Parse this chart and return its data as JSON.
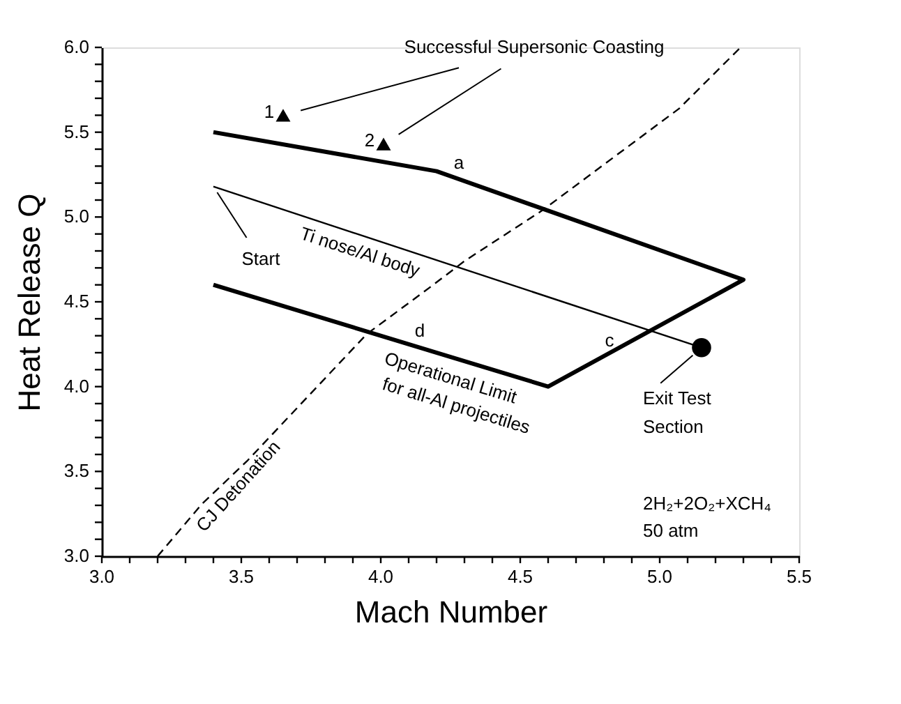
{
  "chart_data": {
    "type": "line",
    "xlabel": "Mach Number",
    "ylabel": "Heat Release Q",
    "xlim": [
      3.0,
      5.5
    ],
    "ylim": [
      3.0,
      6.0
    ],
    "xticks": [
      {
        "value": 3.0,
        "label": "3.0"
      },
      {
        "value": 3.1,
        "label": null
      },
      {
        "value": 3.2,
        "label": null
      },
      {
        "value": 3.3,
        "label": null
      },
      {
        "value": 3.4,
        "label": null
      },
      3.5,
      {
        "value": 3.6,
        "label": null
      },
      {
        "value": 3.7,
        "label": null
      },
      {
        "value": 3.8,
        "label": null
      },
      {
        "value": 3.9,
        "label": null
      },
      {
        "value": 4.0,
        "label": "4.0"
      },
      {
        "value": 4.1,
        "label": null
      },
      {
        "value": 4.2,
        "label": null
      },
      {
        "value": 4.3,
        "label": null
      },
      {
        "value": 4.4,
        "label": null
      },
      4.5,
      {
        "value": 4.6,
        "label": null
      },
      {
        "value": 4.7,
        "label": null
      },
      {
        "value": 4.8,
        "label": null
      },
      {
        "value": 4.9,
        "label": null
      },
      {
        "value": 5.0,
        "label": "5.0"
      },
      {
        "value": 5.1,
        "label": null
      },
      {
        "value": 5.2,
        "label": null
      },
      {
        "value": 5.3,
        "label": null
      },
      {
        "value": 5.4,
        "label": null
      },
      5.5
    ],
    "yticks": [
      {
        "value": 3.0,
        "label": "3.0"
      },
      {
        "value": 3.1,
        "label": null
      },
      {
        "value": 3.2,
        "label": null
      },
      {
        "value": 3.3,
        "label": null
      },
      {
        "value": 3.4,
        "label": null
      },
      3.5,
      {
        "value": 3.6,
        "label": null
      },
      {
        "value": 3.7,
        "label": null
      },
      {
        "value": 3.8,
        "label": null
      },
      {
        "value": 3.9,
        "label": null
      },
      {
        "value": 4.0,
        "label": "4.0"
      },
      {
        "value": 4.1,
        "label": null
      },
      {
        "value": 4.2,
        "label": null
      },
      {
        "value": 4.3,
        "label": null
      },
      {
        "value": 4.4,
        "label": null
      },
      4.5,
      {
        "value": 4.6,
        "label": null
      },
      {
        "value": 4.7,
        "label": null
      },
      {
        "value": 4.8,
        "label": null
      },
      {
        "value": 4.9,
        "label": null
      },
      {
        "value": 5.0,
        "label": "5.0"
      },
      {
        "value": 5.1,
        "label": null
      },
      {
        "value": 5.2,
        "label": null
      },
      {
        "value": 5.3,
        "label": null
      },
      {
        "value": 5.4,
        "label": null
      },
      5.5,
      {
        "value": 5.6,
        "label": null
      },
      {
        "value": 5.7,
        "label": null
      },
      {
        "value": 5.8,
        "label": null
      },
      {
        "value": 5.9,
        "label": null
      },
      {
        "value": 6.0,
        "label": "6.0"
      }
    ],
    "grid": false,
    "series": [
      {
        "color": "#000000",
        "line_style": "solid",
        "x": [
          3.4,
          4.2,
          5.3,
          4.6,
          3.4
        ],
        "values": [
          5.5,
          5.27,
          4.63,
          4.0,
          4.6
        ]
      },
      {
        "color": "#000000",
        "line_style": "solid",
        "x": [
          3.4,
          5.15
        ],
        "values": [
          5.18,
          4.23
        ]
      },
      {
        "color": "#000000",
        "line_style": "dashed",
        "x": [
          3.2,
          3.36,
          3.52,
          3.95,
          4.18,
          4.3,
          4.58,
          5.07,
          5.29
        ],
        "values": [
          3.0,
          3.31,
          3.56,
          4.31,
          4.59,
          4.74,
          5.04,
          5.64,
          6.0
        ]
      },
      {
        "type": "scatter",
        "color": "#000000",
        "marker": "triangle",
        "x": [
          3.65,
          4.01
        ],
        "values": [
          5.6,
          5.43
        ]
      },
      {
        "type": "scatter",
        "color": "#000000",
        "marker": "circle",
        "x": [
          5.15
        ],
        "values": [
          4.23
        ]
      }
    ],
    "annotations": [
      "Successful Supersonic Coasting",
      "1",
      "2",
      "a",
      "c",
      "d",
      "Ti nose/Al body",
      {
        "text": "Start",
        "x": 3.4,
        "y": 5.18
      },
      "Operational Limit",
      "for all-Al projectiles",
      "CJ Detonation",
      {
        "text": "Exit Test",
        "x": 5.15,
        "y": 4.23
      },
      "Section",
      "2H₂+2O₂+XCH₄",
      "50 atm"
    ]
  }
}
